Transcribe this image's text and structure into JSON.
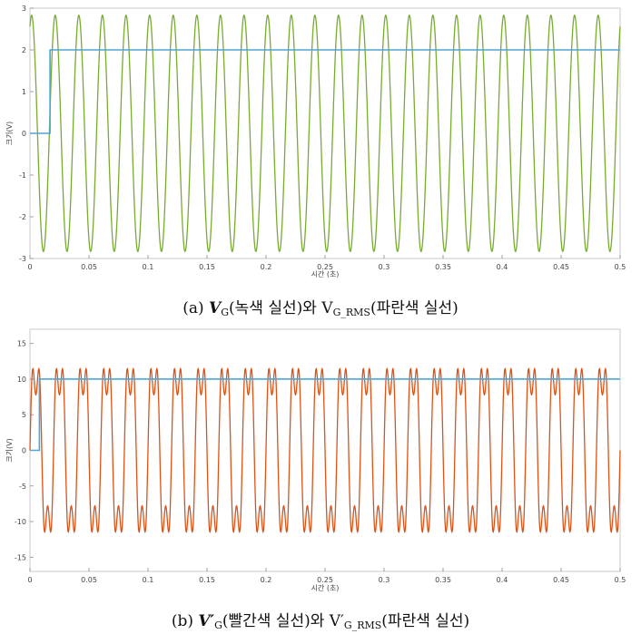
{
  "chart_data": [
    {
      "type": "line",
      "caption": {
        "prefix": "(a)",
        "symbol": "V",
        "symbol_sub": "G",
        "text1": "(녹색 실선)와 V",
        "rms_sub": "G_RMS",
        "text2": "(파란색 실선)"
      },
      "xlabel": "시간 (초)",
      "ylabel": "크기(V)",
      "xlim": [
        0,
        0.5
      ],
      "ylim": [
        -3,
        3
      ],
      "xticks": [
        "0",
        "0.05",
        "0.1",
        "0.15",
        "0.2",
        "0.25",
        "0.3",
        "0.35",
        "0.4",
        "0.45",
        "0.5"
      ],
      "yticks": [
        "-3",
        "-2",
        "-1",
        "0",
        "1",
        "2",
        "3"
      ],
      "series": [
        {
          "color": "#77ac30",
          "kind": "sine",
          "amplitude": 2.83,
          "frequency_hz": 50,
          "phase_cycles": 0.18
        },
        {
          "color": "#4da6d6",
          "kind": "step",
          "before": 0,
          "after": 2,
          "step_time": 0.017
        }
      ]
    },
    {
      "type": "line",
      "caption": {
        "prefix": "(b)",
        "symbol": "V′",
        "symbol_sub": "G",
        "text1": "(빨간색 실선)와 V′",
        "rms_sub": "G_RMS",
        "text2": "(파란색 실선)"
      },
      "xlabel": "시간 (초)",
      "ylabel": "크기(V)",
      "xlim": [
        0,
        0.5
      ],
      "ylim": [
        -17,
        17
      ],
      "xticks": [
        "0",
        "0.05",
        "0.1",
        "0.15",
        "0.2",
        "0.25",
        "0.3",
        "0.35",
        "0.4",
        "0.45",
        "0.5"
      ],
      "yticks": [
        "-15",
        "-10",
        "-5",
        "0",
        "5",
        "10",
        "15"
      ],
      "ytick_values": [
        -15,
        -10,
        -5,
        0,
        5,
        10,
        15
      ],
      "series": [
        {
          "color": "#d95319",
          "kind": "harmonic",
          "frequency_hz": 50,
          "fundamental_amplitude": 12.0,
          "third_harmonic_amplitude": 4.2
        },
        {
          "color": "#4da6d6",
          "kind": "step",
          "before": 0,
          "after": 10,
          "step_time": 0.008
        }
      ]
    }
  ]
}
